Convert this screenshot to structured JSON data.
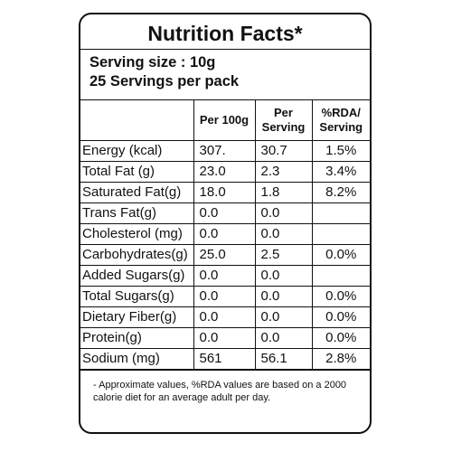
{
  "header": {
    "title": "Nutrition Facts*",
    "serving_size": "Serving size : 10g",
    "servings": "25 Servings per pack"
  },
  "table": {
    "columns": [
      "Per 100g",
      "Per Serving",
      "%RDA/ Serving"
    ],
    "rows": [
      [
        "Energy (kcal)",
        "307.",
        "30.7",
        "1.5%"
      ],
      [
        "Total Fat (g)",
        "23.0",
        "2.3",
        "3.4%"
      ],
      [
        "Saturated Fat(g)",
        "18.0",
        "1.8",
        "8.2%"
      ],
      [
        "Trans Fat(g)",
        "0.0",
        "0.0"
      ],
      [
        "Cholesterol (mg)",
        "0.0",
        "0.0"
      ],
      [
        "Carbohydrates(g)",
        "25.0",
        "2.5",
        "0.0%"
      ],
      [
        "Added Sugars(g)",
        "0.0",
        "0.0"
      ],
      [
        "Total Sugars(g)",
        "0.0",
        "0.0",
        "0.0%"
      ],
      [
        "Dietary Fiber(g)",
        "0.0",
        "0.0",
        "0.0%"
      ],
      [
        "Protein(g)",
        "0.0",
        "0.0",
        "0.0%"
      ],
      [
        "Sodium (mg)",
        "561",
        "56.1",
        "2.8%"
      ]
    ]
  },
  "footnote": "- Approximate values, %RDA values are based on a 2000 calorie diet for an average adult per day."
}
